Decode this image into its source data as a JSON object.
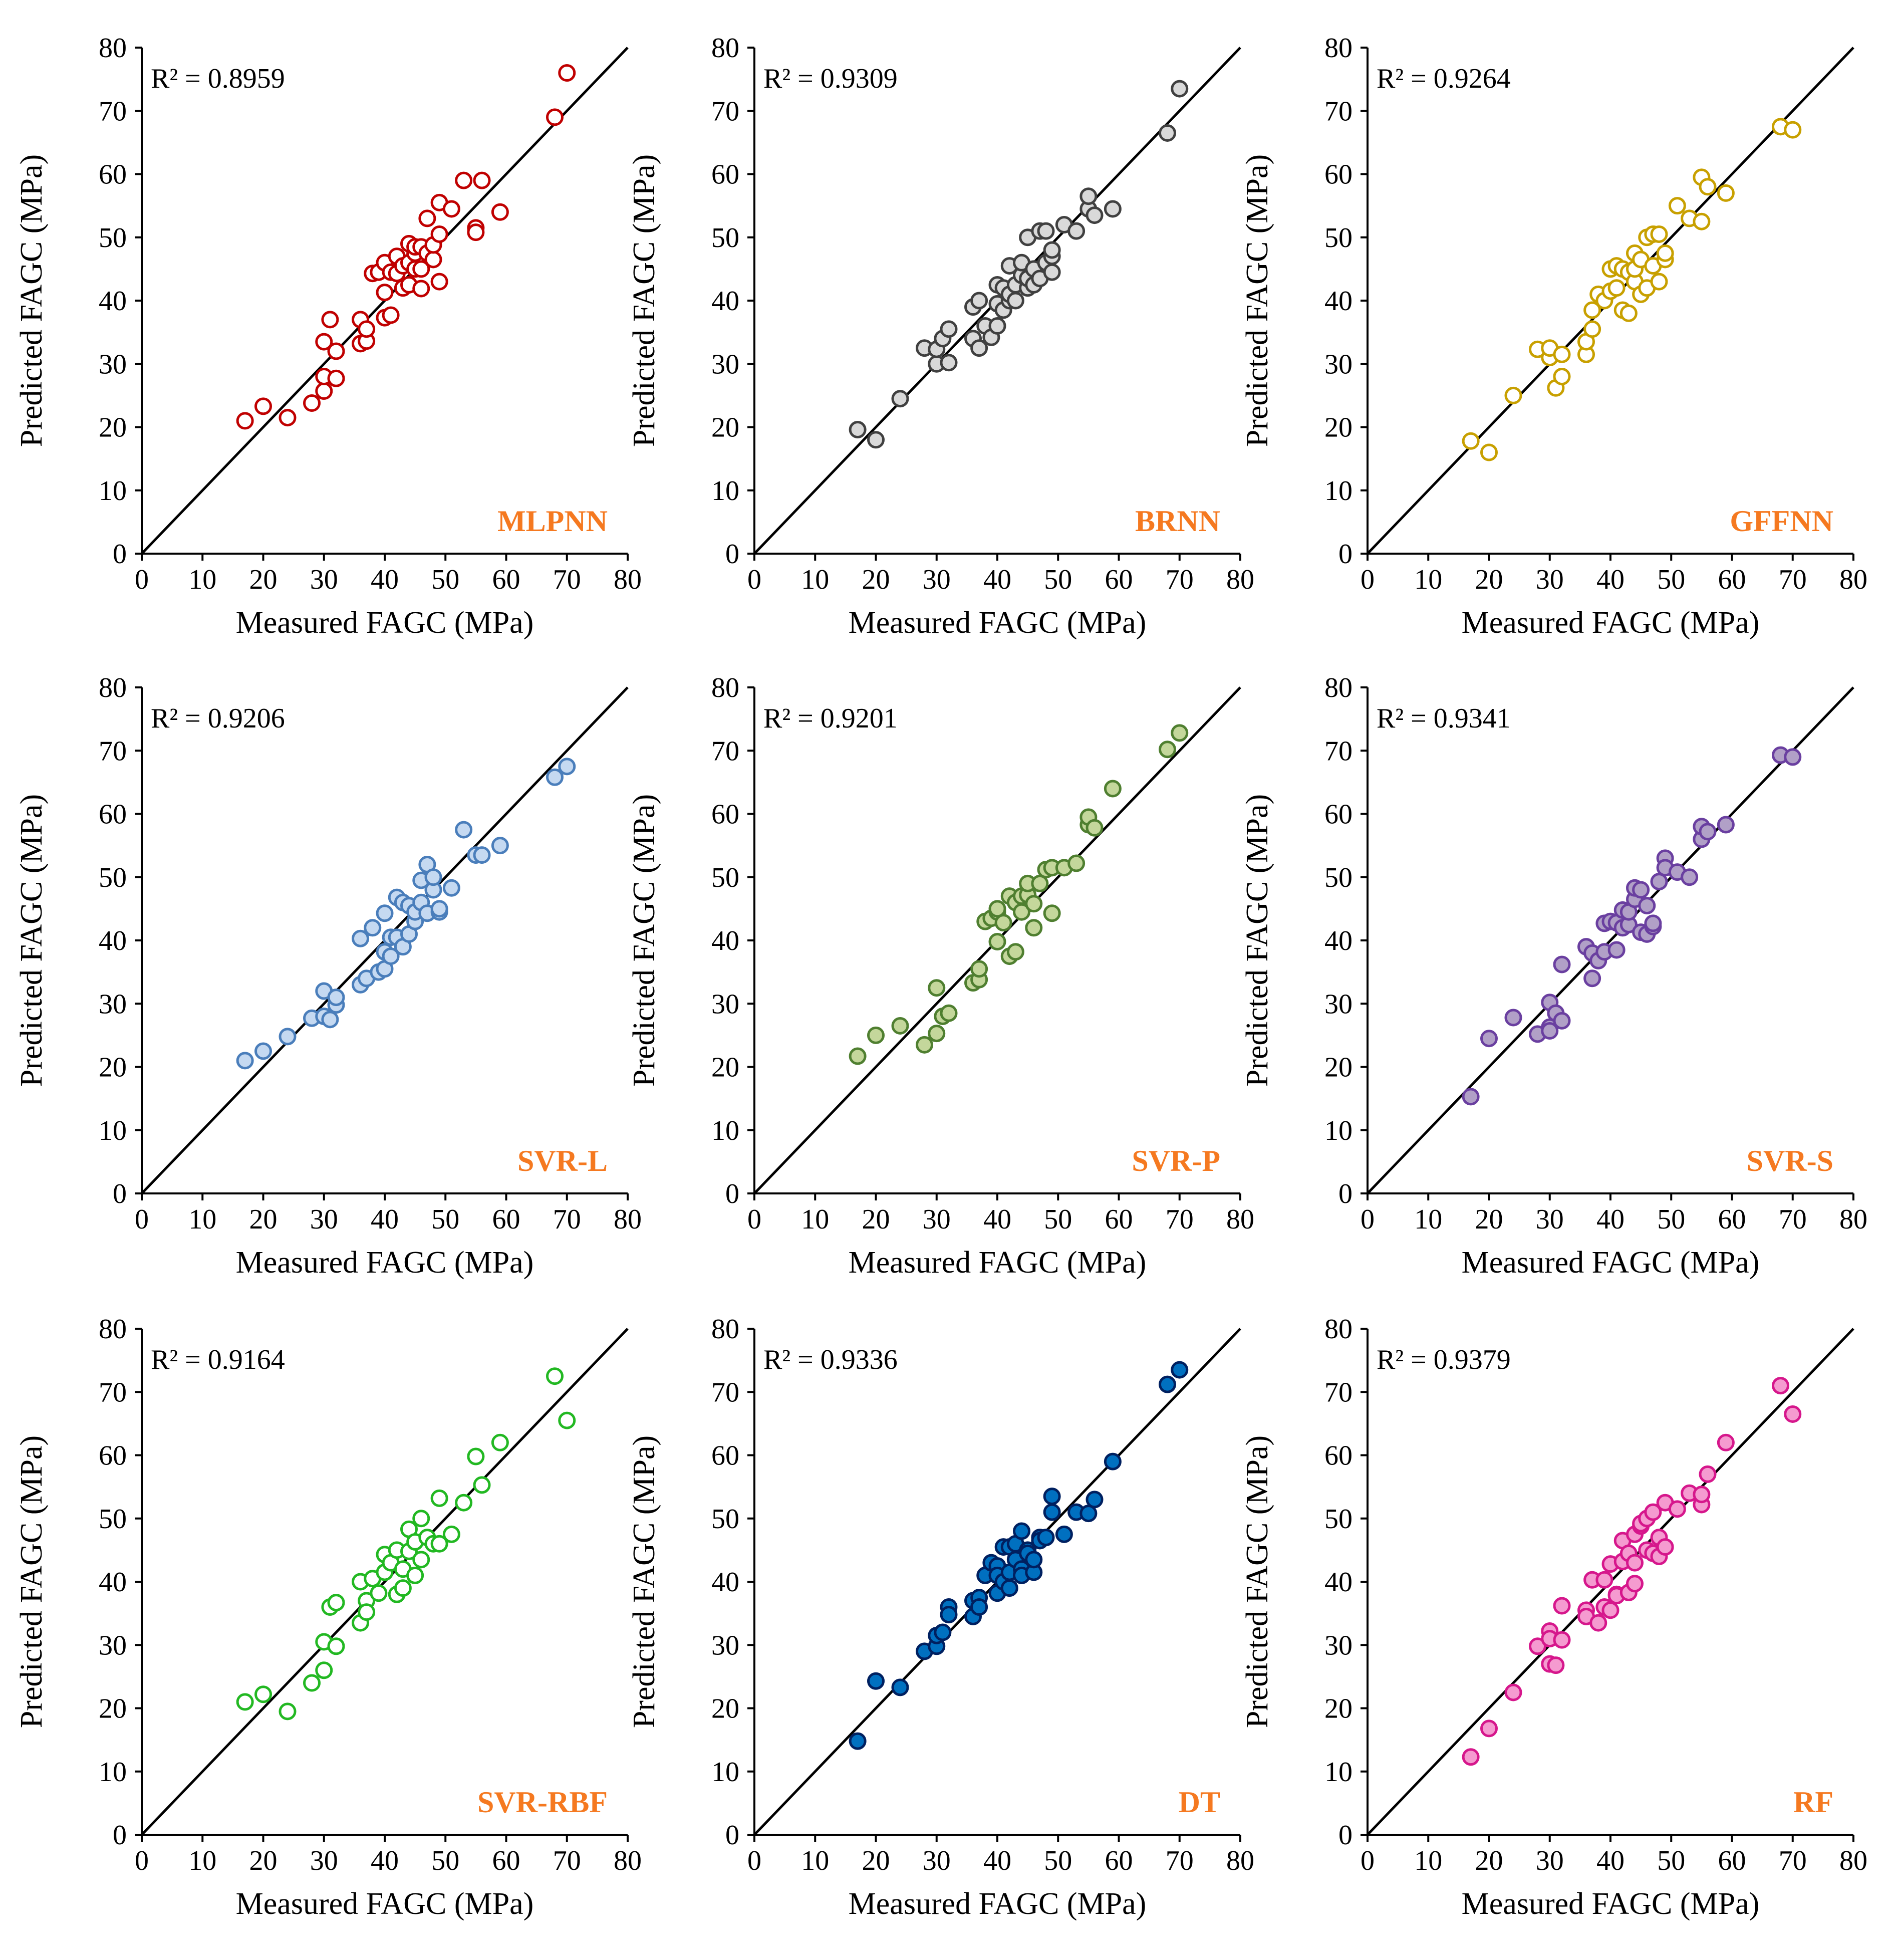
{
  "figure": {
    "xlabel": "Measured FAGC (MPa)",
    "ylabel": "Predicted FAGC (MPa)",
    "xlim": [
      0,
      80
    ],
    "ylim": [
      0,
      80
    ],
    "ticks": [
      "0",
      "10",
      "20",
      "30",
      "40",
      "50",
      "60",
      "70",
      "80"
    ]
  },
  "chart_data": [
    {
      "type": "scatter",
      "model": "MLPNN",
      "r2_text": "R² = 0.8959",
      "marker_fill": "#ffffff",
      "marker_stroke": "#c00000",
      "x": [
        17,
        20,
        24,
        28,
        30,
        30,
        30,
        31,
        32,
        32,
        36,
        36,
        37,
        37,
        38,
        39,
        40,
        40,
        40,
        41,
        41,
        42,
        42,
        43,
        43,
        44,
        44,
        44,
        45,
        45,
        45,
        46,
        46,
        46,
        47,
        47,
        48,
        48,
        49,
        49,
        49,
        51,
        53,
        55,
        55,
        56,
        59,
        68,
        70
      ],
      "y": [
        21,
        23.3,
        21.5,
        23.8,
        25.7,
        28,
        33.5,
        37,
        32,
        27.7,
        33.2,
        37,
        33.6,
        35.5,
        44.3,
        44.5,
        37.3,
        41.3,
        46,
        37.7,
        44.5,
        44.3,
        47,
        42,
        45.5,
        42.5,
        46,
        49,
        45,
        47.5,
        48.5,
        41.9,
        45,
        48.5,
        53,
        47.5,
        46.5,
        48.8,
        43,
        50.5,
        55.5,
        54.5,
        59,
        51.5,
        50.8,
        59,
        54,
        69,
        76
      ]
    },
    {
      "type": "scatter",
      "model": "BRNN",
      "r2_text": "R² = 0.9309",
      "marker_fill": "#d9d9d9",
      "marker_stroke": "#404040",
      "x": [
        17,
        20,
        24,
        28,
        30,
        30,
        31,
        32,
        32,
        36,
        36,
        37,
        37,
        38,
        39,
        40,
        40,
        40,
        41,
        41,
        42,
        42,
        42,
        43,
        43,
        44,
        44,
        45,
        45,
        45,
        46,
        46,
        47,
        47,
        48,
        48,
        49,
        49,
        49,
        51,
        53,
        55,
        55,
        56,
        59,
        68,
        70
      ],
      "y": [
        19.6,
        18,
        24.5,
        32.5,
        30,
        32.3,
        34,
        35.5,
        30.2,
        39,
        34,
        40,
        32.5,
        36,
        34.2,
        36,
        39.5,
        42.5,
        38.5,
        42,
        40,
        41,
        45.5,
        40,
        42.5,
        44,
        46,
        42,
        43.5,
        50,
        42.5,
        45,
        51,
        43.5,
        46,
        51,
        44.5,
        47,
        48,
        52,
        51,
        54.5,
        56.5,
        53.5,
        54.5,
        66.5,
        73.5
      ]
    },
    {
      "type": "scatter",
      "model": "GFFNN",
      "r2_text": "R² = 0.9264",
      "marker_fill": "#ffffff",
      "marker_stroke": "#c8a000",
      "x": [
        17,
        20,
        24,
        28,
        30,
        30,
        31,
        32,
        32,
        36,
        36,
        37,
        37,
        38,
        39,
        40,
        40,
        41,
        41,
        42,
        42,
        43,
        43,
        44,
        44,
        44,
        45,
        45,
        46,
        46,
        47,
        47,
        48,
        48,
        49,
        49,
        51,
        53,
        55,
        55,
        56,
        59,
        68,
        70
      ],
      "y": [
        17.8,
        16,
        25,
        32.3,
        31,
        32.5,
        26.2,
        28,
        31.5,
        31.5,
        33.5,
        35.5,
        38.5,
        41,
        40,
        41.5,
        45,
        42,
        45.5,
        38.5,
        45,
        38,
        44.5,
        47.5,
        43,
        45,
        41,
        46.5,
        42,
        50,
        45.5,
        50.5,
        43,
        50.5,
        46.5,
        47.5,
        55,
        53,
        52.5,
        59.5,
        58,
        57,
        67.5,
        67
      ]
    },
    {
      "type": "scatter",
      "model": "SVR-L",
      "r2_text": "R² = 0.9206",
      "marker_fill": "#c5d9f1",
      "marker_stroke": "#4a7ebb",
      "x": [
        17,
        20,
        24,
        28,
        30,
        30,
        31,
        32,
        32,
        36,
        36,
        37,
        38,
        39,
        40,
        40,
        40,
        41,
        41,
        42,
        42,
        43,
        43,
        44,
        44,
        45,
        45,
        46,
        46,
        47,
        47,
        48,
        48,
        49,
        49,
        51,
        53,
        55,
        56,
        59,
        68,
        70
      ],
      "y": [
        21,
        22.5,
        24.8,
        27.7,
        32,
        28,
        27.5,
        29.8,
        31,
        40.3,
        33,
        34,
        42,
        35,
        38.2,
        35.5,
        44.3,
        40.5,
        37.5,
        46.8,
        40.5,
        39,
        46,
        41,
        45.5,
        43,
        44.5,
        46,
        49.5,
        52,
        44.3,
        48,
        50,
        44.5,
        45,
        48.3,
        57.5,
        53.5,
        53.5,
        55,
        65.8,
        67.5
      ]
    },
    {
      "type": "scatter",
      "model": "SVR-P",
      "r2_text": "R² = 0.9201",
      "marker_fill": "#c4d79b",
      "marker_stroke": "#4f7f30",
      "x": [
        17,
        20,
        24,
        28,
        30,
        30,
        31,
        32,
        36,
        37,
        37,
        38,
        39,
        40,
        40,
        40,
        41,
        42,
        42,
        43,
        43,
        44,
        44,
        45,
        45,
        46,
        46,
        47,
        48,
        49,
        49,
        51,
        53,
        55,
        55,
        56,
        59,
        68,
        70
      ],
      "y": [
        21.7,
        25,
        26.5,
        23.5,
        25.3,
        32.5,
        28,
        28.5,
        33.3,
        33.8,
        35.5,
        43,
        43.5,
        44.5,
        45,
        39.8,
        42.8,
        37.5,
        47,
        38.2,
        46,
        44.5,
        47,
        47.2,
        49,
        42,
        45.8,
        49,
        51.2,
        51.5,
        44.3,
        51.5,
        52.2,
        58.3,
        59.5,
        57.8,
        64,
        70.2,
        72.8
      ]
    },
    {
      "type": "scatter",
      "model": "SVR-S",
      "r2_text": "R² = 0.9341",
      "marker_fill": "#b1a0c7",
      "marker_stroke": "#6a3fa0",
      "x": [
        17,
        20,
        24,
        28,
        30,
        30,
        30,
        31,
        32,
        32,
        36,
        37,
        37,
        38,
        39,
        39,
        40,
        41,
        41,
        42,
        42,
        43,
        43,
        44,
        44,
        45,
        45,
        46,
        46,
        47,
        47,
        48,
        49,
        49,
        51,
        53,
        55,
        55,
        56,
        59,
        68,
        70
      ],
      "y": [
        15.3,
        24.5,
        27.8,
        25.2,
        30.2,
        26.3,
        25.7,
        28.5,
        27.3,
        36.2,
        39,
        38,
        34,
        36.8,
        38.2,
        42.7,
        43,
        38.5,
        42.8,
        44.8,
        42,
        42.5,
        44.5,
        46.5,
        48.3,
        41.3,
        48,
        41,
        45.5,
        42.2,
        42.7,
        49.3,
        53,
        51.5,
        50.8,
        50,
        56,
        58,
        57.2,
        58.3,
        69.3,
        69
      ]
    },
    {
      "type": "scatter",
      "model": "SVR-RBF",
      "r2_text": "R² = 0.9164",
      "marker_fill": "#ffffff",
      "marker_stroke": "#22b822",
      "x": [
        17,
        20,
        24,
        28,
        30,
        30,
        31,
        32,
        32,
        36,
        36,
        37,
        37,
        38,
        39,
        40,
        40,
        41,
        42,
        42,
        43,
        43,
        44,
        44,
        45,
        45,
        46,
        46,
        47,
        48,
        49,
        49,
        51,
        53,
        55,
        56,
        59,
        68,
        70
      ],
      "y": [
        21,
        22.2,
        19.5,
        24,
        26,
        30.5,
        36,
        36.7,
        29.8,
        40,
        33.5,
        37,
        35.2,
        40.5,
        38.2,
        41.5,
        44.3,
        43,
        45,
        38,
        42,
        39,
        48.3,
        44.8,
        41,
        46.3,
        43.5,
        50,
        47,
        46,
        53.2,
        46,
        47.5,
        52.5,
        59.8,
        55.3,
        62,
        72.5,
        65.5
      ]
    },
    {
      "type": "scatter",
      "model": "DT",
      "r2_text": "R² = 0.9336",
      "marker_fill": "#0070c0",
      "marker_stroke": "#002060",
      "x": [
        17,
        20,
        24,
        28,
        30,
        30,
        31,
        32,
        32,
        36,
        36,
        37,
        37,
        38,
        39,
        40,
        40,
        40,
        41,
        41,
        42,
        42,
        42,
        43,
        43,
        44,
        44,
        44,
        45,
        45,
        46,
        46,
        47,
        47,
        48,
        49,
        49,
        51,
        53,
        55,
        56,
        59,
        68,
        70
      ],
      "y": [
        14.8,
        24.3,
        23.3,
        29,
        29.8,
        31.5,
        32,
        36,
        34.8,
        34.5,
        37,
        37.5,
        36,
        41,
        43,
        42.5,
        38.2,
        41,
        45.5,
        40,
        39,
        45.5,
        41.5,
        43.5,
        46,
        42,
        48,
        41,
        45,
        44.5,
        41.5,
        43.5,
        47,
        46.5,
        47,
        53.5,
        51,
        47.5,
        51,
        50.8,
        53,
        59,
        71.2,
        73.5
      ]
    },
    {
      "type": "scatter",
      "model": "RF",
      "r2_text": "R² = 0.9379",
      "marker_fill": "#f59bd0",
      "marker_stroke": "#d6178c",
      "x": [
        17,
        20,
        24,
        28,
        30,
        30,
        30,
        31,
        32,
        32,
        36,
        36,
        37,
        38,
        39,
        39,
        40,
        40,
        41,
        41,
        42,
        42,
        43,
        43,
        44,
        44,
        44,
        45,
        45,
        46,
        46,
        47,
        47,
        48,
        48,
        49,
        49,
        51,
        53,
        55,
        55,
        56,
        59,
        68,
        70
      ],
      "y": [
        12.3,
        16.8,
        22.5,
        29.8,
        32.2,
        31,
        27,
        26.8,
        30.8,
        36.2,
        35.5,
        34.5,
        40.3,
        33.5,
        36,
        40.3,
        35.5,
        42.8,
        38,
        37.8,
        43.2,
        46.5,
        38.3,
        44.5,
        39.7,
        47.5,
        43,
        48.8,
        49.2,
        45,
        50,
        51,
        44.5,
        47,
        44,
        45.5,
        52.5,
        51.5,
        54,
        52.2,
        53.8,
        57,
        62,
        71,
        66.5
      ]
    }
  ]
}
